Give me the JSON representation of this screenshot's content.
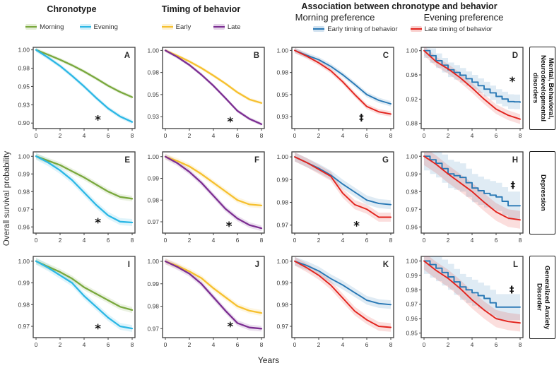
{
  "figure": {
    "col_headers": [
      {
        "label": "Chronotype"
      },
      {
        "label": "Timing of behavior"
      },
      {
        "label": "Association between chronotype  and behavior"
      }
    ],
    "sub_headers": [
      {
        "label": "Morning preference"
      },
      {
        "label": "Evening preference"
      }
    ],
    "legends": {
      "chronotype": [
        {
          "label": "Morning",
          "color": "#79a83d"
        },
        {
          "label": "Evening",
          "color": "#2bb7e5"
        }
      ],
      "timing": [
        {
          "label": "Early",
          "color": "#f6c02e"
        },
        {
          "label": "Late",
          "color": "#7c2e92"
        }
      ],
      "association": [
        {
          "label": "Early timing of behavior",
          "color": "#2878b5"
        },
        {
          "label": "Late timing of behavior",
          "color": "#e2231d"
        }
      ]
    },
    "ylabel": "Overall survival probability",
    "xlabel": "Years",
    "row_labels": [
      {
        "label": "Mental, Behavioral, Neurodevelopmental disorders"
      },
      {
        "label": "Depression"
      },
      {
        "label": "Generalized Anxiety Disorder"
      }
    ]
  },
  "chart_data": {
    "type": "line",
    "x": [
      0,
      1,
      2,
      3,
      4,
      5,
      6,
      7,
      8
    ],
    "xticks": [
      0,
      2,
      4,
      6,
      8
    ],
    "xlabel": "Years",
    "ylabel": "Overall survival probability",
    "panels": [
      {
        "id": "A",
        "col": 1,
        "ylim": [
          0.8925,
          1.0035
        ],
        "yticks": [
          {
            "v": 1.0,
            "t": "1.00"
          },
          {
            "v": 0.975,
            "t": "0.98"
          },
          {
            "v": 0.95,
            "t": "0.95"
          },
          {
            "v": 0.925,
            "t": "0.93"
          },
          {
            "v": 0.9,
            "t": "0.90"
          }
        ],
        "series": [
          {
            "name": "Morning",
            "color": "#79a83d",
            "band": 0.0025,
            "y": [
              1.0,
              0.9935,
              0.9865,
              0.979,
              0.9705,
              0.961,
              0.951,
              0.9425,
              0.9355
            ]
          },
          {
            "name": "Evening",
            "color": "#2bb7e5",
            "band": 0.003,
            "y": [
              1.0,
              0.9895,
              0.978,
              0.9645,
              0.95,
              0.9345,
              0.92,
              0.909,
              0.9015
            ]
          }
        ],
        "symbol": {
          "glyph": "*",
          "x": 5.15,
          "y": 0.9045
        }
      },
      {
        "id": "B",
        "col": 2,
        "ylim": [
          0.9115,
          1.0035
        ],
        "yticks": [
          {
            "v": 1.0,
            "t": "1.00"
          },
          {
            "v": 0.975,
            "t": "0.98"
          },
          {
            "v": 0.95,
            "t": "0.95"
          },
          {
            "v": 0.925,
            "t": "0.93"
          }
        ],
        "series": [
          {
            "name": "Early",
            "color": "#f6c02e",
            "band": 0.002,
            "y": [
              1.0,
              0.994,
              0.9875,
              0.98,
              0.9715,
              0.9625,
              0.9525,
              0.9445,
              0.9405
            ]
          },
          {
            "name": "Late",
            "color": "#7c2e92",
            "band": 0.002,
            "y": [
              1.0,
              0.9925,
              0.9835,
              0.9725,
              0.96,
              0.946,
              0.9315,
              0.9225,
              0.9165
            ]
          }
        ],
        "symbol": {
          "glyph": "*",
          "x": 5.4,
          "y": 0.9195
        }
      },
      {
        "id": "C",
        "col": 3,
        "ylim": [
          0.9115,
          1.0035
        ],
        "yticks": [
          {
            "v": 1.0,
            "t": "1.00"
          },
          {
            "v": 0.975,
            "t": "0.98"
          },
          {
            "v": 0.95,
            "t": "0.95"
          },
          {
            "v": 0.925,
            "t": "0.93"
          }
        ],
        "series": [
          {
            "name": "Early timing of behavior",
            "color": "#2878b5",
            "band": 0.003,
            "y": [
              1.0,
              0.9945,
              0.9895,
              0.982,
              0.9725,
              0.9615,
              0.95,
              0.9435,
              0.9395
            ]
          },
          {
            "name": "Late timing of behavior",
            "color": "#e2231d",
            "band": 0.003,
            "y": [
              1.0,
              0.9935,
              0.986,
              0.977,
              0.9645,
              0.95,
              0.9365,
              0.9305,
              0.928
            ]
          }
        ],
        "symbol": {
          "glyph": "‡",
          "x": 5.55,
          "y": 0.9235
        }
      },
      {
        "id": "D",
        "col": 4,
        "ylim": [
          0.8715,
          1.0055
        ],
        "yticks": [
          {
            "v": 1.0,
            "t": "1.00"
          },
          {
            "v": 0.96,
            "t": "0.96"
          },
          {
            "v": 0.92,
            "t": "0.92"
          },
          {
            "v": 0.88,
            "t": "0.88"
          }
        ],
        "series": [
          {
            "name": "Early timing of behavior",
            "color": "#2878b5",
            "band": 0.012,
            "step": true,
            "y": [
              1.0,
              0.9835,
              0.9685,
              0.9595,
              0.948,
              0.9365,
              0.9245,
              0.916,
              0.915
            ]
          },
          {
            "name": "Late timing of behavior",
            "color": "#e2231d",
            "band": 0.008,
            "y": [
              1.0,
              0.982,
              0.97,
              0.9555,
              0.9385,
              0.92,
              0.9035,
              0.8935,
              0.887
            ]
          }
        ],
        "symbol": {
          "glyph": "*",
          "x": 7.35,
          "y": 0.9495
        }
      },
      {
        "id": "E",
        "col": 1,
        "ylim": [
          0.9565,
          1.0025
        ],
        "yticks": [
          {
            "v": 1.0,
            "t": "1.00"
          },
          {
            "v": 0.99,
            "t": "0.99"
          },
          {
            "v": 0.98,
            "t": "0.98"
          },
          {
            "v": 0.97,
            "t": "0.97"
          },
          {
            "v": 0.96,
            "t": "0.96"
          }
        ],
        "series": [
          {
            "name": "Morning",
            "color": "#79a83d",
            "band": 0.0016,
            "y": [
              1.0,
              0.9975,
              0.995,
              0.9915,
              0.988,
              0.984,
              0.98,
              0.977,
              0.976
            ]
          },
          {
            "name": "Evening",
            "color": "#2bb7e5",
            "band": 0.002,
            "y": [
              1.0,
              0.9965,
              0.992,
              0.9865,
              0.9795,
              0.9725,
              0.9665,
              0.963,
              0.9625
            ]
          }
        ],
        "symbol": {
          "glyph": "*",
          "x": 5.15,
          "y": 0.9625
        }
      },
      {
        "id": "F",
        "col": 2,
        "ylim": [
          0.9648,
          1.0022
        ],
        "yticks": [
          {
            "v": 1.0,
            "t": "1.00"
          },
          {
            "v": 0.99,
            "t": "0.99"
          },
          {
            "v": 0.98,
            "t": "0.98"
          },
          {
            "v": 0.97,
            "t": "0.97"
          }
        ],
        "series": [
          {
            "name": "Early",
            "color": "#f6c02e",
            "band": 0.0013,
            "y": [
              1.0,
              0.998,
              0.9955,
              0.992,
              0.988,
              0.984,
              0.98,
              0.978,
              0.9775
            ]
          },
          {
            "name": "Late",
            "color": "#7c2e92",
            "band": 0.0013,
            "y": [
              1.0,
              0.997,
              0.993,
              0.988,
              0.982,
              0.976,
              0.9715,
              0.9685,
              0.967
            ]
          }
        ],
        "symbol": {
          "glyph": "*",
          "x": 5.3,
          "y": 0.968
        }
      },
      {
        "id": "G",
        "col": 3,
        "ylim": [
          0.9665,
          1.0022
        ],
        "yticks": [
          {
            "v": 1.0,
            "t": "1.00"
          },
          {
            "v": 0.99,
            "t": "0.99"
          },
          {
            "v": 0.98,
            "t": "0.98"
          },
          {
            "v": 0.97,
            "t": "0.97"
          }
        ],
        "series": [
          {
            "name": "Early timing of behavior",
            "color": "#2878b5",
            "band": 0.002,
            "y": [
              1.0,
              0.9975,
              0.995,
              0.992,
              0.988,
              0.9845,
              0.981,
              0.9795,
              0.979
            ]
          },
          {
            "name": "Late timing of behavior",
            "color": "#e2231d",
            "band": 0.002,
            "y": [
              1.0,
              0.9975,
              0.9945,
              0.9915,
              0.984,
              0.979,
              0.977,
              0.9735,
              0.9735
            ]
          }
        ],
        "symbol": {
          "glyph": "*",
          "x": 5.15,
          "y": 0.9697
        }
      },
      {
        "id": "H",
        "col": 4,
        "ylim": [
          0.9565,
          1.0025
        ],
        "yticks": [
          {
            "v": 1.0,
            "t": "1.00"
          },
          {
            "v": 0.99,
            "t": "0.99"
          },
          {
            "v": 0.98,
            "t": "0.98"
          },
          {
            "v": 0.97,
            "t": "0.97"
          },
          {
            "v": 0.96,
            "t": "0.96"
          }
        ],
        "series": [
          {
            "name": "Early timing of behavior",
            "color": "#2878b5",
            "band": 0.008,
            "step": true,
            "y": [
              1.0,
              0.996,
              0.99,
              0.988,
              0.982,
              0.979,
              0.977,
              0.972,
              0.972
            ]
          },
          {
            "name": "Late timing of behavior",
            "color": "#e2231d",
            "band": 0.005,
            "y": [
              1.0,
              0.9955,
              0.99,
              0.985,
              0.98,
              0.974,
              0.9685,
              0.965,
              0.964
            ]
          }
        ],
        "symbol": {
          "glyph": "‡",
          "x": 7.4,
          "y": 0.9835
        }
      },
      {
        "id": "I",
        "col": 1,
        "ylim": [
          0.9648,
          1.0022
        ],
        "yticks": [
          {
            "v": 1.0,
            "t": "1.00"
          },
          {
            "v": 0.99,
            "t": "0.99"
          },
          {
            "v": 0.98,
            "t": "0.98"
          },
          {
            "v": 0.97,
            "t": "0.97"
          }
        ],
        "series": [
          {
            "name": "Morning",
            "color": "#79a83d",
            "band": 0.0014,
            "y": [
              1.0,
              0.9975,
              0.995,
              0.992,
              0.988,
              0.985,
              0.982,
              0.979,
              0.9775
            ]
          },
          {
            "name": "Evening",
            "color": "#2bb7e5",
            "band": 0.0016,
            "y": [
              1.0,
              0.997,
              0.9935,
              0.99,
              0.984,
              0.979,
              0.974,
              0.97,
              0.969
            ]
          }
        ],
        "symbol": {
          "glyph": "*",
          "x": 5.15,
          "y": 0.969
        }
      },
      {
        "id": "J",
        "col": 2,
        "ylim": [
          0.966,
          1.0022
        ],
        "yticks": [
          {
            "v": 1.0,
            "t": "1.00"
          },
          {
            "v": 0.99,
            "t": "0.99"
          },
          {
            "v": 0.98,
            "t": "0.98"
          },
          {
            "v": 0.97,
            "t": "0.97"
          }
        ],
        "series": [
          {
            "name": "Early",
            "color": "#f6c02e",
            "band": 0.0013,
            "y": [
              1.0,
              0.998,
              0.9955,
              0.9925,
              0.988,
              0.984,
              0.98,
              0.978,
              0.977
            ]
          },
          {
            "name": "Late",
            "color": "#7c2e92",
            "band": 0.0013,
            "y": [
              1.0,
              0.9975,
              0.9945,
              0.99,
              0.984,
              0.978,
              0.9725,
              0.9705,
              0.97
            ]
          }
        ],
        "symbol": {
          "glyph": "*",
          "x": 5.4,
          "y": 0.971
        }
      },
      {
        "id": "K",
        "col": 3,
        "ylim": [
          0.9648,
          1.0022
        ],
        "yticks": [
          {
            "v": 1.0,
            "t": "1.00"
          },
          {
            "v": 0.99,
            "t": "0.99"
          },
          {
            "v": 0.98,
            "t": "0.98"
          },
          {
            "v": 0.97,
            "t": "0.97"
          }
        ],
        "series": [
          {
            "name": "Early timing of behavior",
            "color": "#2878b5",
            "band": 0.002,
            "y": [
              1.0,
              0.998,
              0.9955,
              0.992,
              0.989,
              0.9855,
              0.982,
              0.9805,
              0.98
            ]
          },
          {
            "name": "Late timing of behavior",
            "color": "#e2231d",
            "band": 0.002,
            "y": [
              1.0,
              0.997,
              0.9935,
              0.989,
              0.983,
              0.977,
              0.973,
              0.97,
              0.9695
            ]
          }
        ]
      },
      {
        "id": "L",
        "col": 4,
        "ylim": [
          0.9468,
          1.0032
        ],
        "yticks": [
          {
            "v": 1.0,
            "t": "1.00"
          },
          {
            "v": 0.99,
            "t": "0.99"
          },
          {
            "v": 0.98,
            "t": "0.98"
          },
          {
            "v": 0.97,
            "t": "0.97"
          },
          {
            "v": 0.96,
            "t": "0.96"
          },
          {
            "v": 0.95,
            "t": "0.95"
          }
        ],
        "series": [
          {
            "name": "Early timing of behavior",
            "color": "#2878b5",
            "band": 0.009,
            "step": true,
            "y": [
              1.0,
              0.995,
              0.989,
              0.982,
              0.978,
              0.974,
              0.968,
              0.968,
              0.968
            ]
          },
          {
            "name": "Late timing of behavior",
            "color": "#e2231d",
            "band": 0.006,
            "y": [
              1.0,
              0.9935,
              0.988,
              0.981,
              0.973,
              0.966,
              0.96,
              0.958,
              0.957
            ]
          }
        ],
        "symbol": {
          "glyph": "‡",
          "x": 7.3,
          "y": 0.98
        }
      }
    ]
  }
}
